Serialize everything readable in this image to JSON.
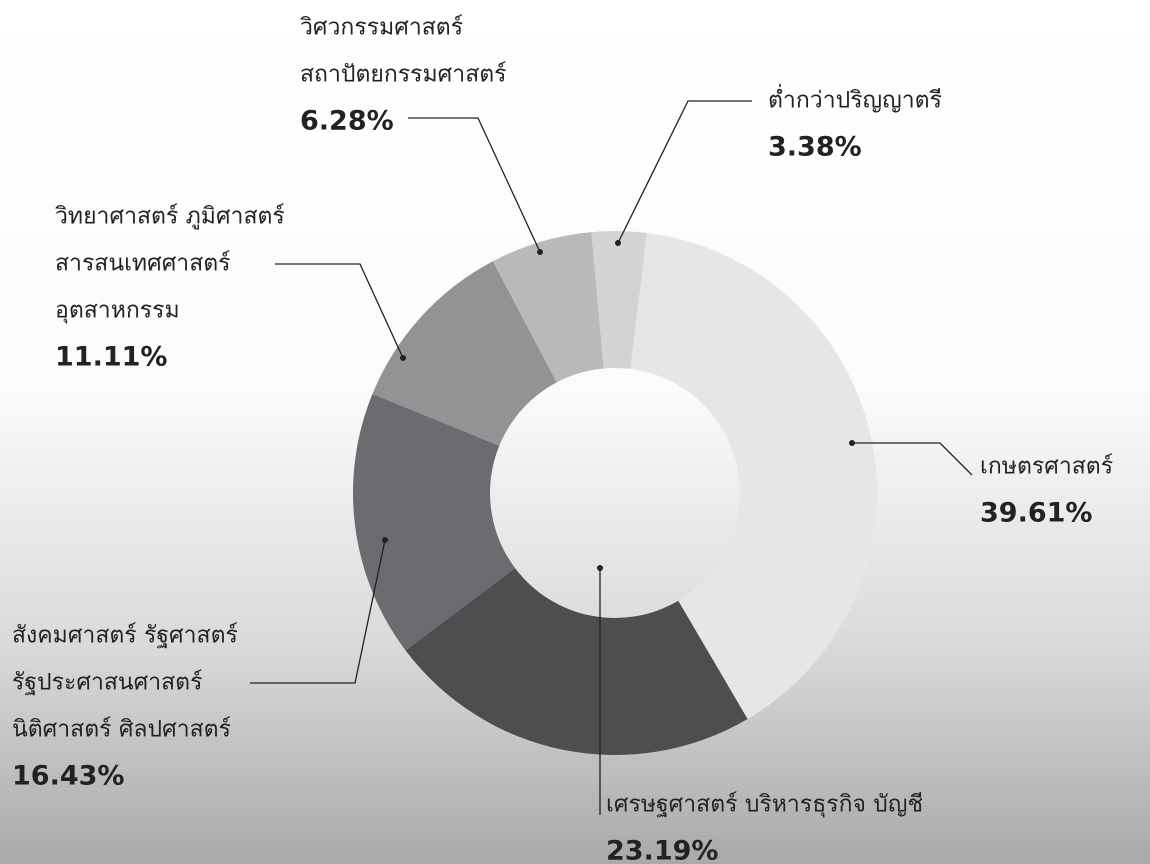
{
  "chart_data": {
    "type": "donut",
    "categories": [
      [
        "เกษตรศาสตร์"
      ],
      [
        "เศรษฐศาสตร์ บริหารธุรกิจ บัญชี"
      ],
      [
        "สังคมศาสตร์ รัฐศาสตร์",
        "รัฐประศาสนศาสตร์",
        "นิติศาสตร์ ศิลปศาสตร์"
      ],
      [
        "วิทยาศาสตร์ ภูมิศาสตร์",
        "สารสนเทศศาสตร์",
        "อุตสาหกรรม"
      ],
      [
        "วิศวกรรมศาสตร์",
        "สถาปัตยกรรมศาสตร์"
      ],
      [
        "ต่ำกว่าปริญญาตรี"
      ]
    ],
    "values": [
      39.61,
      23.19,
      16.43,
      11.11,
      6.28,
      3.38
    ],
    "value_labels": [
      "39.61%",
      "23.19%",
      "16.43%",
      "11.11%",
      "6.28%",
      "3.38%"
    ],
    "colors": [
      "#e6e6e6",
      "#4d4e50",
      "#6b6c6f",
      "#939395",
      "#b9b9bb",
      "#d3d3d4"
    ]
  }
}
